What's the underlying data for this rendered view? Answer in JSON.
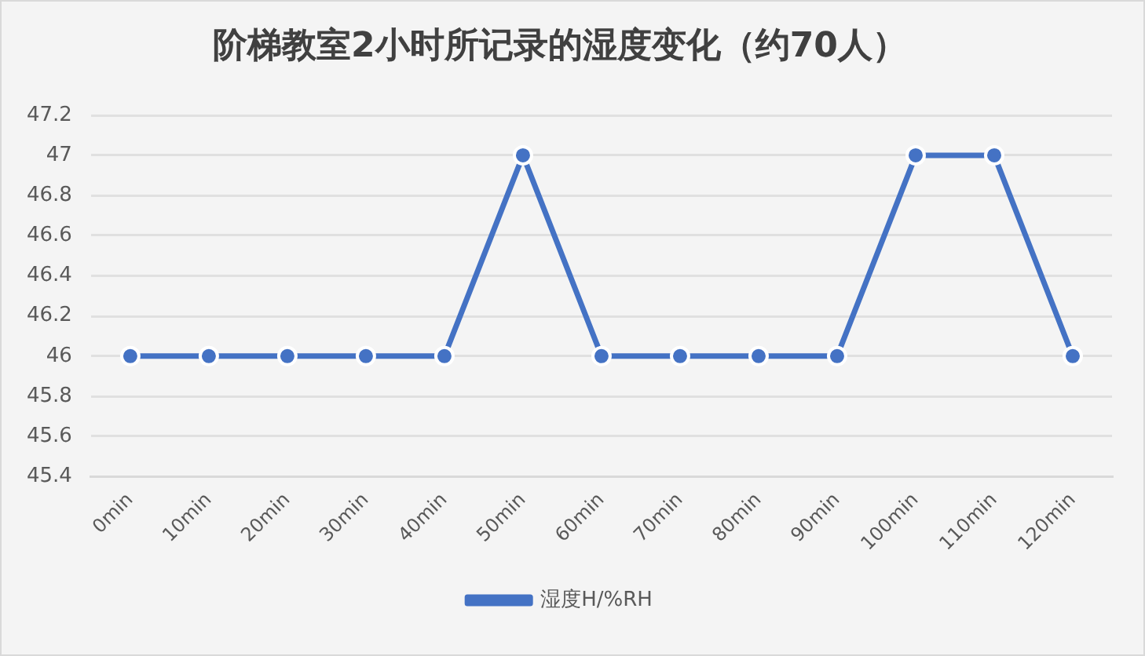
{
  "chart_data": {
    "type": "line",
    "title": "阶梯教室2小时所记录的湿度变化（约70人）",
    "categories": [
      "0min",
      "10min",
      "20min",
      "30min",
      "40min",
      "50min",
      "60min",
      "70min",
      "80min",
      "90min",
      "100min",
      "110min",
      "120min"
    ],
    "series": [
      {
        "name": "湿度H/%RH",
        "color": "#4472c4",
        "values": [
          46,
          46,
          46,
          46,
          46,
          47,
          46,
          46,
          46,
          46,
          47,
          47,
          46
        ]
      }
    ],
    "ylim": [
      45.4,
      47.2
    ],
    "yticks": [
      45.4,
      45.6,
      45.8,
      46,
      46.2,
      46.4,
      46.6,
      46.8,
      47,
      47.2
    ],
    "grid": "y",
    "legend": "bottom",
    "marker": "circle",
    "line_style": "solid"
  }
}
